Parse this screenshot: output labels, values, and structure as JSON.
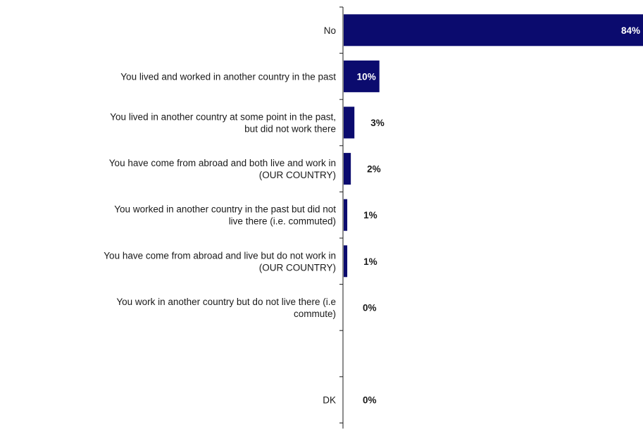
{
  "colors": {
    "bar": "#0b0b6e",
    "axis": "#1a1a1a",
    "text": "#1a1a1a",
    "value_inside": "#ffffff",
    "value_outside": "#1a1a1a"
  },
  "chart_data": {
    "type": "bar",
    "orientation": "horizontal",
    "unit": "%",
    "xlim": [
      0,
      84
    ],
    "grid": false,
    "legend": "none",
    "categories": [
      [
        "No"
      ],
      [
        "You lived and worked in another country in the past"
      ],
      [
        "You lived in another country at some point in the past,",
        "but did not work there"
      ],
      [
        "You have come from abroad and both live and work in",
        "(OUR COUNTRY)"
      ],
      [
        "You worked in another country in the past but did not",
        "live there (i.e. commuted)"
      ],
      [
        "You have come from abroad and live but do not work in",
        "(OUR COUNTRY)"
      ],
      [
        "You work in another country but do not live there (i.e",
        "commute)"
      ],
      [
        ""
      ],
      [
        "DK"
      ]
    ],
    "values": [
      84,
      10,
      3,
      2,
      1,
      1,
      0,
      null,
      0
    ],
    "value_labels": [
      "84%",
      "10%",
      "3%",
      "2%",
      "1%",
      "1%",
      "0%",
      "",
      "0%"
    ],
    "value_label_inside": [
      true,
      true,
      false,
      false,
      false,
      false,
      false,
      false,
      false
    ]
  }
}
